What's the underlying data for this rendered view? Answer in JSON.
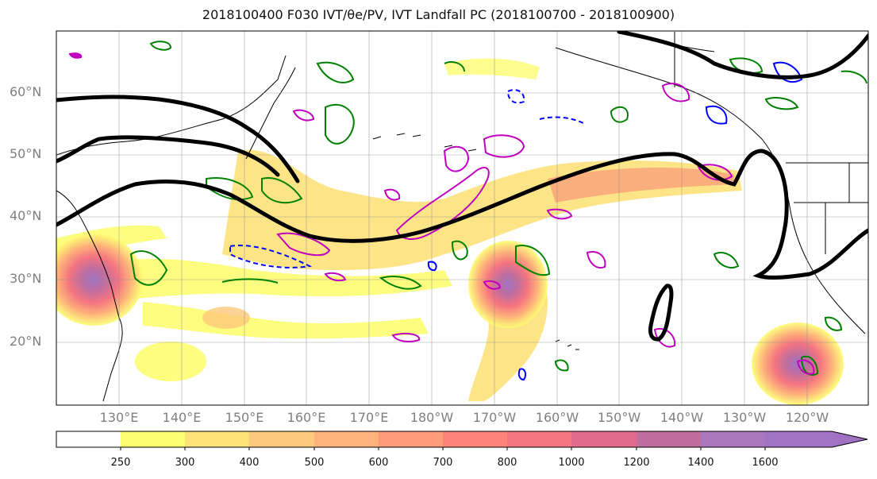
{
  "title": "2018100400 F030 IVT/θe/PV, IVT Landfall PC (2018100700 - 2018100900)",
  "lat_labels": [
    "60°N",
    "50°N",
    "40°N",
    "30°N",
    "20°N"
  ],
  "lon_labels": [
    "130°E",
    "140°E",
    "150°E",
    "160°E",
    "170°E",
    "180°W",
    "170°W",
    "160°W",
    "150°W",
    "140°W",
    "130°W",
    "120°W"
  ],
  "colorbar": {
    "labels": [
      "250",
      "300",
      "400",
      "500",
      "600",
      "700",
      "800",
      "1000",
      "1200",
      "1400",
      "1600"
    ],
    "colors": [
      "#fdfd72",
      "#fde27a",
      "#fdc97b",
      "#fdb27a",
      "#fd9a7a",
      "#fd8479",
      "#f57481",
      "#e06b8a",
      "#c06e9e",
      "#aa77bf"
    ]
  },
  "colors": {
    "ivt_low": "#fdfd72",
    "ivt_high": "#9f72c3",
    "theta_e_contour": "#000000",
    "pv_positive": "#008000",
    "pv_negative": "#0000ff",
    "magenta_contour": "#c000c0"
  }
}
